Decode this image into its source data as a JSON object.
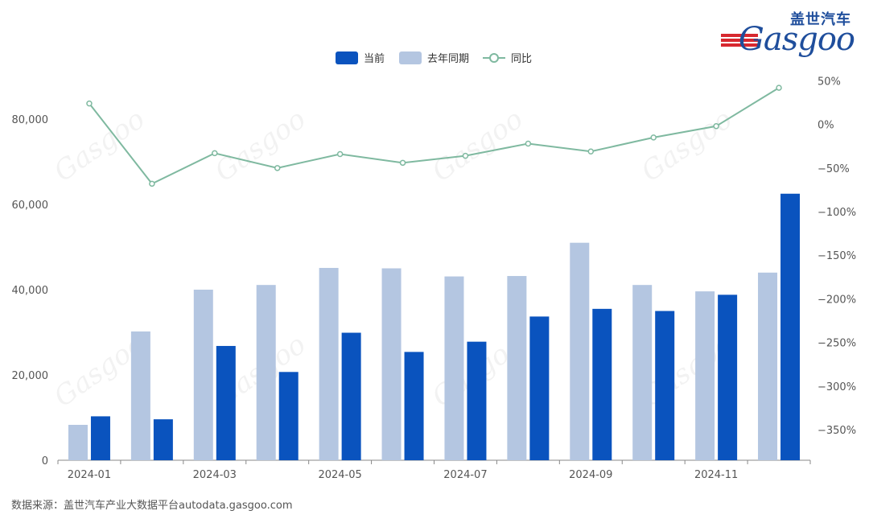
{
  "brand": {
    "cn": "盖世汽车",
    "en": "Gasgoo"
  },
  "source_text": "数据来源：盖世汽车产业大数据平台autodata.gasgoo.com",
  "colors": {
    "current": "#0a53be",
    "previous": "#b4c6e1",
    "yoy": "#7fb9a0",
    "axis": "#888888"
  },
  "chart_data": {
    "type": "bar",
    "categories": [
      "2024-01",
      "2024-02",
      "2024-03",
      "2024-04",
      "2024-05",
      "2024-06",
      "2024-07",
      "2024-08",
      "2024-09",
      "2024-10",
      "2024-11",
      "2024-12"
    ],
    "x_tick_labels": [
      "2024-01",
      "2024-03",
      "2024-05",
      "2024-07",
      "2024-09",
      "2024-11"
    ],
    "series": [
      {
        "name": "当前",
        "type": "bar",
        "axis": "left",
        "values": [
          10300,
          9600,
          26800,
          20700,
          29900,
          25400,
          27800,
          33700,
          35500,
          35000,
          38800,
          62500
        ]
      },
      {
        "name": "去年同期",
        "type": "bar",
        "axis": "left",
        "values": [
          8300,
          30200,
          40000,
          41100,
          45100,
          45000,
          43100,
          43200,
          51000,
          41100,
          39600,
          44000
        ]
      },
      {
        "name": "同比",
        "type": "line",
        "axis": "right",
        "values": [
          24,
          -68,
          -33,
          -50,
          -34,
          -44,
          -36,
          -22,
          -31,
          -15,
          -2,
          42
        ]
      }
    ],
    "y_left": {
      "ylim": [
        0,
        90000
      ],
      "ticks": [
        0,
        20000,
        40000,
        60000,
        80000
      ],
      "tick_labels": [
        "0",
        "20,000",
        "40,000",
        "60,000",
        "80,000"
      ]
    },
    "y_right": {
      "ylim": [
        -385,
        55
      ],
      "ticks": [
        50,
        0,
        -50,
        -100,
        -150,
        -200,
        -250,
        -300,
        -350
      ],
      "tick_labels": [
        "50%",
        "0%",
        "−50%",
        "−100%",
        "−150%",
        "−200%",
        "−250%",
        "−300%",
        "−350%"
      ]
    },
    "legend": {
      "position": "top-center",
      "items": [
        "当前",
        "去年同期",
        "同比"
      ]
    },
    "grid": false
  }
}
